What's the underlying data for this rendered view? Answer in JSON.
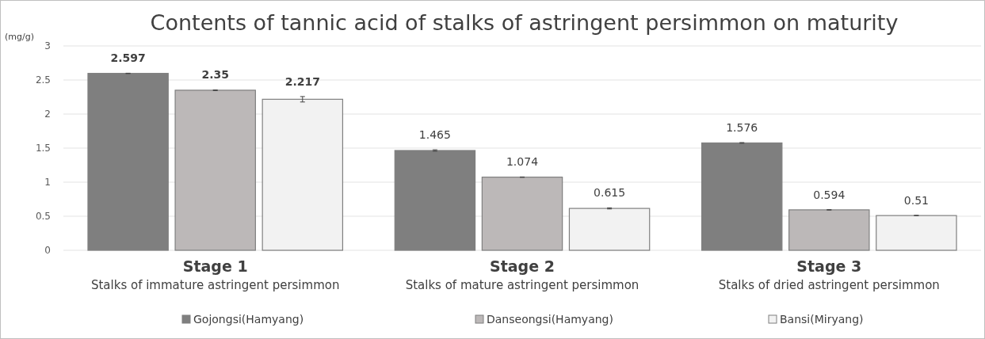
{
  "chart_data": {
    "type": "bar",
    "title": "Contents of tannic acid of stalks of astringent persimmon on maturity",
    "ylabel": "(mg/g)",
    "categories": [
      "Stage 1\nStalks of immature astringent persimmon",
      "Stage 2\nStalks of mature astringent persimmon",
      "Stage 3\nStalks of dried astringent persimmon"
    ],
    "series": [
      {
        "name": "Gojongsi(Hamyang)",
        "color": "#7f7f7f",
        "values": [
          2.597,
          1.465,
          1.576
        ],
        "errors": [
          0.003,
          0.01,
          0.005
        ]
      },
      {
        "name": "Danseongsi(Hamyang)",
        "color": "#bcb8b8",
        "values": [
          2.35,
          1.074,
          0.594
        ],
        "errors": [
          0.005,
          0.003,
          0.003
        ]
      },
      {
        "name": "Bansi(Miryang)",
        "color": "#f2f2f2",
        "values": [
          2.217,
          0.615,
          0.51
        ],
        "errors": [
          0.04,
          0.008,
          0.003
        ]
      }
    ],
    "ylim": [
      0,
      3
    ],
    "yticks": [
      0,
      0.5,
      1,
      1.5,
      2,
      2.5,
      3
    ],
    "grid": "y",
    "legend": "bottom",
    "data_labels": true
  }
}
